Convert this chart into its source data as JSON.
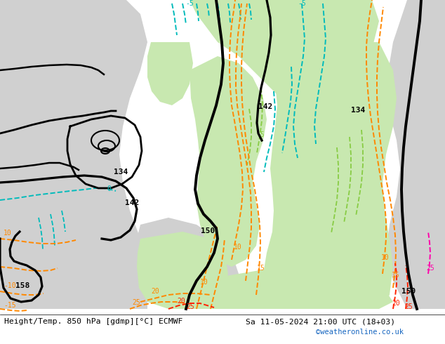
{
  "title_left": "Height/Temp. 850 hPa [gdmp][°C] ECMWF",
  "title_right": "Sa 11-05-2024 21:00 UTC (18+03)",
  "watermark": "©weatheronline.co.uk",
  "bg_white": "#ffffff",
  "bg_gray": "#d0d0d0",
  "bg_green": "#c8e8b0",
  "bg_green2": "#b8d898",
  "BLACK": "#000000",
  "CYAN": "#00bbbb",
  "CYAN2": "#00aaff",
  "GREEN": "#88cc00",
  "ORANGE": "#ff8800",
  "RED": "#ff2200",
  "PINK": "#ff00aa",
  "watermark_color": "#1565c0",
  "fig_width": 6.34,
  "fig_height": 4.9,
  "dpi": 100
}
